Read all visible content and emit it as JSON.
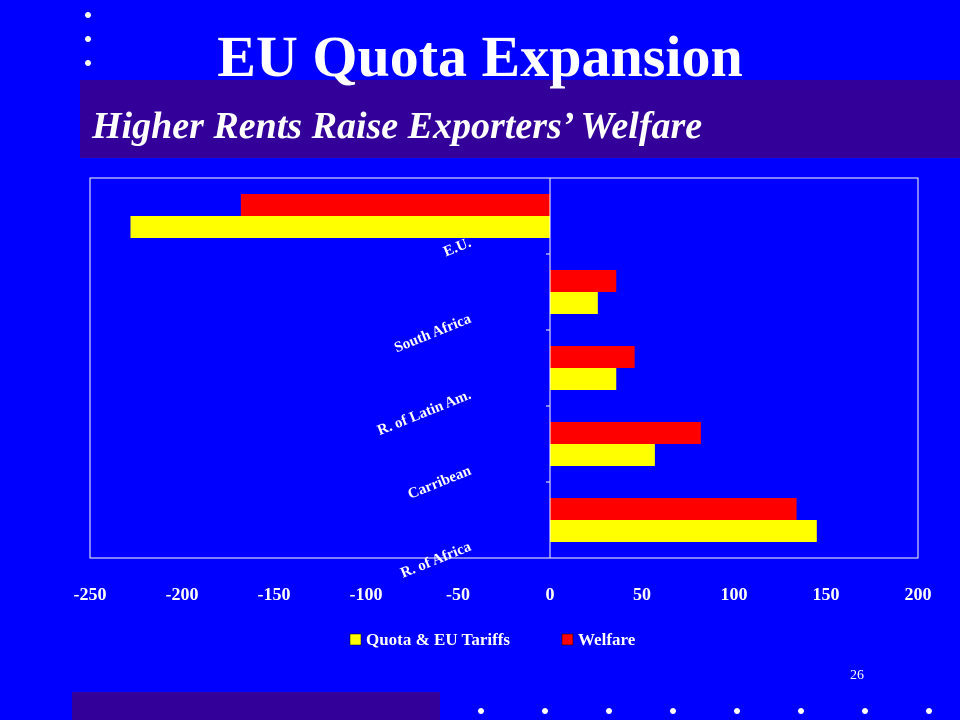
{
  "slide": {
    "title": "EU Quota Expansion",
    "subtitle": "Higher Rents Raise Exporters’ Welfare",
    "page_number": "26"
  },
  "colors": {
    "background": "#0000ff",
    "band": "#330099",
    "text": "#ffffff",
    "series_quota": "#ffff00",
    "series_welfare": "#ff0000"
  },
  "chart_data": {
    "type": "bar",
    "orientation": "horizontal",
    "categories": [
      "R. of Africa",
      "Carribean",
      "R. of Latin Am.",
      "South Africa",
      "E.U."
    ],
    "series": [
      {
        "name": "Quota & EU Tariffs",
        "color": "#ffff00",
        "values": [
          145,
          57,
          36,
          26,
          -228
        ]
      },
      {
        "name": "Welfare",
        "color": "#ff0000",
        "values": [
          134,
          82,
          46,
          36,
          -168
        ]
      }
    ],
    "xlim": [
      -250,
      200
    ],
    "xticks": [
      -250,
      -200,
      -150,
      -100,
      -50,
      0,
      50,
      100,
      150,
      200
    ],
    "legend_position": "bottom",
    "grid": false
  }
}
